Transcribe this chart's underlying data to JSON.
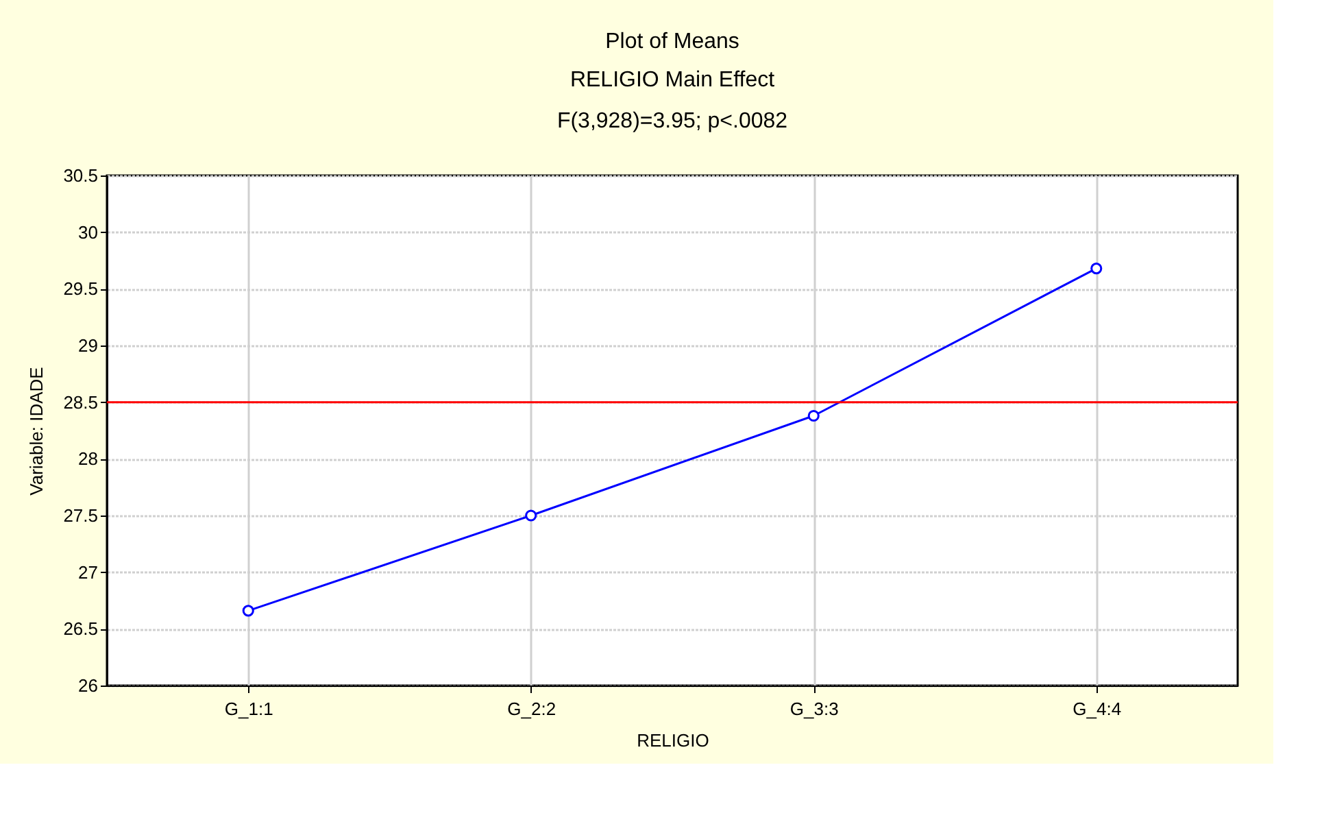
{
  "chart_data": {
    "type": "line",
    "title": "Plot of Means",
    "subtitle": "RELIGIO Main Effect\nF(3,928)=3.95; p<.0082",
    "xlabel": "RELIGIO",
    "ylabel": "Variable: IDADE",
    "categories": [
      "G_1:1",
      "G_2:2",
      "G_3:3",
      "G_4:4"
    ],
    "series": [
      {
        "color": "#0000ff",
        "values": [
          26.66,
          27.5,
          28.38,
          29.68
        ]
      }
    ],
    "ylim": [
      26,
      30.5
    ],
    "yticks": [
      26,
      26.5,
      27,
      27.5,
      28,
      28.5,
      29,
      29.5,
      30,
      30.5
    ],
    "ref_lines": [
      {
        "axis": "y",
        "value": 28.5,
        "color": "#ff0000"
      }
    ],
    "grid": true,
    "marker": "circle",
    "line_style": "solid"
  }
}
